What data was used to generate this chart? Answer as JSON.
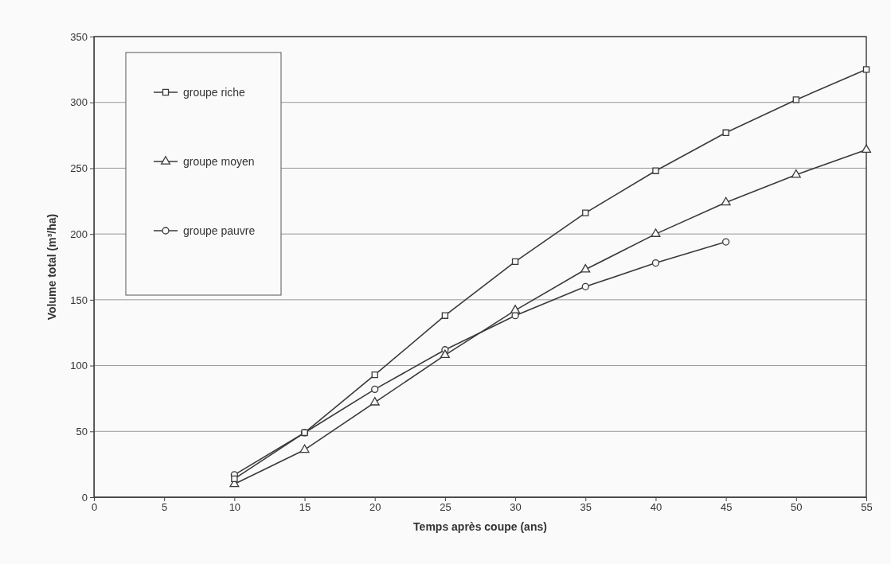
{
  "chart_data": {
    "type": "line",
    "xlabel": "Temps après coupe (ans)",
    "ylabel": "Volume total (m³/ha)",
    "x": [
      10,
      15,
      20,
      25,
      30,
      35,
      40,
      45,
      50,
      55
    ],
    "series": [
      {
        "name": "groupe riche",
        "color": "#3a3a3a",
        "marker": "square",
        "values": [
          14,
          49,
          93,
          138,
          179,
          216,
          248,
          277,
          302,
          325
        ]
      },
      {
        "name": "groupe moyen",
        "color": "#3a3a3a",
        "marker": "triangle",
        "values": [
          10,
          36,
          72,
          108,
          142,
          173,
          200,
          224,
          245,
          264
        ]
      },
      {
        "name": "groupe pauvre",
        "color": "#3a3a3a",
        "marker": "circle",
        "values": [
          17,
          49,
          82,
          112,
          138,
          160,
          178,
          194,
          null,
          null
        ]
      }
    ],
    "xlim": [
      0,
      55
    ],
    "xticks": [
      0,
      5,
      10,
      15,
      20,
      25,
      30,
      35,
      40,
      45,
      50,
      55
    ],
    "ylim": [
      0,
      350
    ],
    "yticks": [
      0,
      50,
      100,
      150,
      200,
      250,
      300,
      350
    ],
    "grid": "y",
    "legend": "top left",
    "line_style": "solid"
  }
}
